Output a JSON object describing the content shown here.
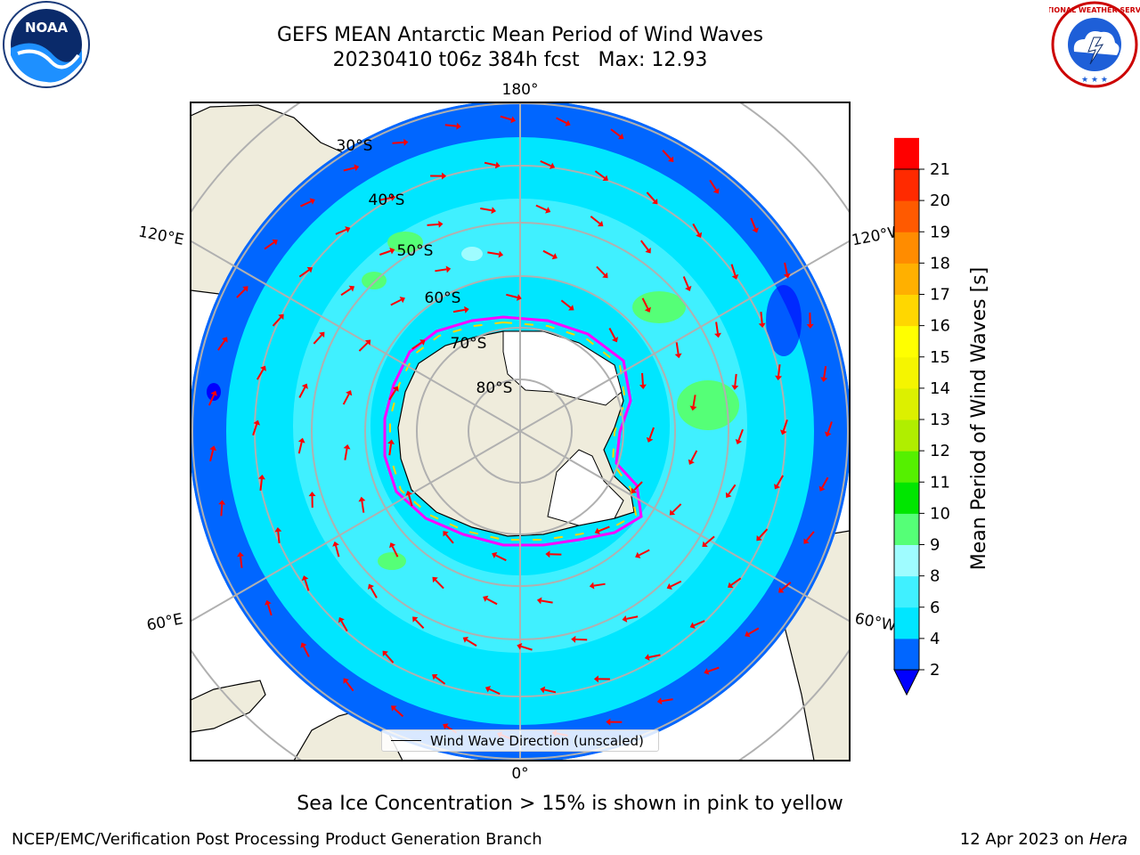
{
  "header": {
    "title": "GEFS MEAN Antarctic Mean Period of Wind Waves",
    "subtitle": "20230410 t06z 384h fcst   Max: 12.93"
  },
  "logos": {
    "left": {
      "icon": "noaa-logo",
      "text": "NOAA"
    },
    "right": {
      "icon": "nws-logo",
      "text": "NATIONAL WEATHER SERVICE"
    }
  },
  "map": {
    "projection": "south-polar-stereographic",
    "longitude_labels": {
      "top": "180°",
      "bottom": "0°",
      "left_upper": "120°E",
      "left_lower": "60°E",
      "right_upper": "120°W",
      "right_lower": "60°W"
    },
    "latitude_labels": [
      "30°S",
      "40°S",
      "50°S",
      "60°S",
      "70°S",
      "80°S"
    ],
    "arrow_color": "#ff0000",
    "land_color": "#efecdc",
    "ice_shelf_color": "#ffffff",
    "sea_ice_colors": [
      "#ff00ff",
      "#ffd700"
    ],
    "gridline_color": "#b0b0b0",
    "legend": {
      "label": "Wind Wave Direction (unscaled)"
    }
  },
  "colorbar": {
    "title": "Mean Period of Wind Waves [s]",
    "ticks": [
      "2",
      "4",
      "6",
      "8",
      "9",
      "10",
      "11",
      "12",
      "13",
      "14",
      "15",
      "16",
      "17",
      "18",
      "19",
      "20",
      "21"
    ],
    "colors": [
      "#0066ff",
      "#00e6ff",
      "#40f0ff",
      "#9ffcff",
      "#55ff77",
      "#00e600",
      "#55f000",
      "#b0ee00",
      "#dcf000",
      "#f5f500",
      "#ffff00",
      "#ffd700",
      "#ffb000",
      "#ff8c00",
      "#ff5a00",
      "#ff2a00",
      "#ff0000"
    ],
    "under_color": "#0000ff",
    "extend": "min"
  },
  "notes": {
    "sea_ice": "Sea Ice Concentration > 15% is shown in pink to yellow"
  },
  "footer": {
    "left": "NCEP/EMC/Verification Post Processing Product Generation Branch",
    "right_date": "12 Apr 2023 on ",
    "right_machine": "Hera"
  }
}
